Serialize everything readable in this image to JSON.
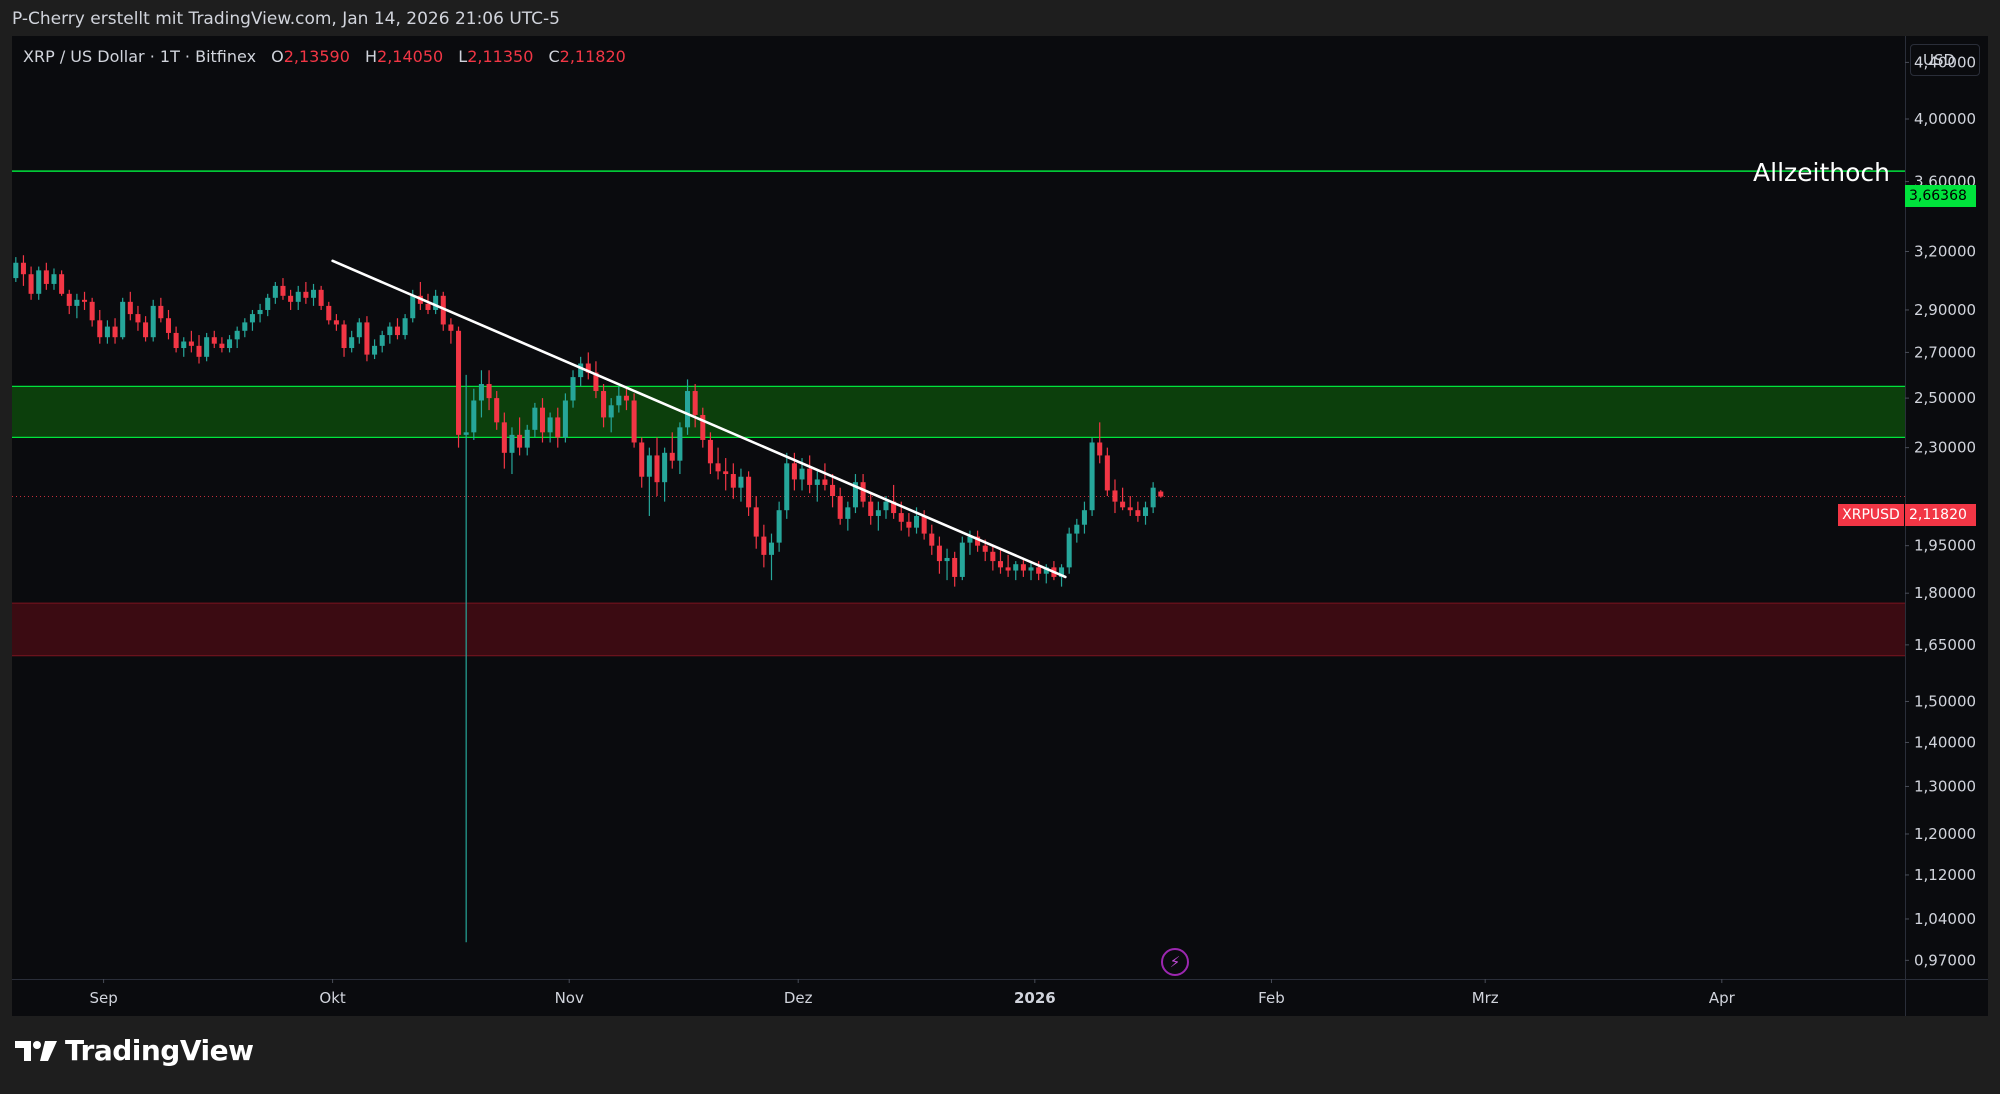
{
  "header": {
    "text": "P-Cherry erstellt mit TradingView.com, Jan 14, 2026 21:06 UTC-5"
  },
  "symbol": {
    "name": "XRP / US Dollar · 1T · Bitfinex",
    "o_label": "O",
    "o": "2,13590",
    "h_label": "H",
    "h": "2,14050",
    "l_label": "L",
    "l": "2,11350",
    "c_label": "C",
    "c": "2,11820"
  },
  "currency": "USD",
  "annotation": "Allzeithoch",
  "price_tags": {
    "ath": "3,66368",
    "ticker": "XRPUSD",
    "last": "2,11820"
  },
  "brand": {
    "name": "TradingView",
    "icon": "tradingview-logo-icon"
  },
  "toolbar": {
    "lightning_icon": "lightning-icon"
  },
  "colors": {
    "background": "#0a0b0e",
    "frame": "#1e1e1e",
    "up": "#26a69a",
    "down": "#f23645",
    "resistance_zone": "#0c3f0c",
    "support_zone": "#3b0b12",
    "ath_line": "#00e33c",
    "trendline": "#ffffff",
    "text": "#d1d4dc"
  },
  "chart_data": {
    "type": "candlestick",
    "symbol": "XRPUSD",
    "timeframe": "1T",
    "exchange": "Bitfinex",
    "y_scale": "log",
    "ylim": [
      0.94,
      4.6
    ],
    "y_ticks": [
      {
        "value": 4.4,
        "label": "4,40000"
      },
      {
        "value": 4.0,
        "label": "4,00000"
      },
      {
        "value": 3.6,
        "label": "3,60000"
      },
      {
        "value": 3.2,
        "label": "3,20000"
      },
      {
        "value": 2.9,
        "label": "2,90000"
      },
      {
        "value": 2.7,
        "label": "2,70000"
      },
      {
        "value": 2.5,
        "label": "2,50000"
      },
      {
        "value": 2.3,
        "label": "2,30000"
      },
      {
        "value": 1.95,
        "label": "1,95000"
      },
      {
        "value": 1.8,
        "label": "1,80000"
      },
      {
        "value": 1.65,
        "label": "1,65000"
      },
      {
        "value": 1.5,
        "label": "1,50000"
      },
      {
        "value": 1.4,
        "label": "1,40000"
      },
      {
        "value": 1.3,
        "label": "1,30000"
      },
      {
        "value": 1.2,
        "label": "1,20000"
      },
      {
        "value": 1.12,
        "label": "1,12000"
      },
      {
        "value": 1.04,
        "label": "1,04000"
      },
      {
        "value": 0.97,
        "label": "0,97000"
      }
    ],
    "x_start": "2025-08-20",
    "x_end": "2026-04-25",
    "x_ticks": [
      {
        "date": "2025-09-01",
        "label": "Sep"
      },
      {
        "date": "2025-10-01",
        "label": "Okt"
      },
      {
        "date": "2025-11-01",
        "label": "Nov"
      },
      {
        "date": "2025-12-01",
        "label": "Dez"
      },
      {
        "date": "2026-01-01",
        "label": "2026",
        "bold": true
      },
      {
        "date": "2026-02-01",
        "label": "Feb"
      },
      {
        "date": "2026-03-01",
        "label": "Mrz"
      },
      {
        "date": "2026-04-01",
        "label": "Apr"
      }
    ],
    "candles_start": "2025-08-20",
    "candles_ohlc": [
      [
        3.06,
        3.17,
        3.04,
        3.14
      ],
      [
        3.14,
        3.18,
        3.02,
        3.08
      ],
      [
        3.08,
        3.12,
        2.95,
        2.98
      ],
      [
        2.98,
        3.12,
        2.95,
        3.1
      ],
      [
        3.1,
        3.14,
        3.0,
        3.03
      ],
      [
        3.03,
        3.11,
        3.0,
        3.08
      ],
      [
        3.08,
        3.1,
        2.97,
        2.98
      ],
      [
        2.98,
        3.0,
        2.88,
        2.92
      ],
      [
        2.92,
        2.98,
        2.86,
        2.95
      ],
      [
        2.95,
        2.99,
        2.9,
        2.94
      ],
      [
        2.94,
        2.96,
        2.82,
        2.85
      ],
      [
        2.85,
        2.9,
        2.74,
        2.77
      ],
      [
        2.77,
        2.85,
        2.74,
        2.82
      ],
      [
        2.82,
        2.86,
        2.74,
        2.77
      ],
      [
        2.77,
        2.96,
        2.76,
        2.94
      ],
      [
        2.94,
        2.99,
        2.85,
        2.88
      ],
      [
        2.88,
        2.92,
        2.8,
        2.84
      ],
      [
        2.84,
        2.87,
        2.75,
        2.77
      ],
      [
        2.77,
        2.95,
        2.75,
        2.92
      ],
      [
        2.92,
        2.96,
        2.84,
        2.86
      ],
      [
        2.86,
        2.9,
        2.76,
        2.79
      ],
      [
        2.79,
        2.82,
        2.7,
        2.72
      ],
      [
        2.72,
        2.77,
        2.68,
        2.75
      ],
      [
        2.75,
        2.8,
        2.7,
        2.73
      ],
      [
        2.73,
        2.78,
        2.65,
        2.68
      ],
      [
        2.68,
        2.79,
        2.66,
        2.77
      ],
      [
        2.77,
        2.8,
        2.72,
        2.74
      ],
      [
        2.74,
        2.77,
        2.7,
        2.72
      ],
      [
        2.72,
        2.78,
        2.7,
        2.76
      ],
      [
        2.76,
        2.82,
        2.72,
        2.8
      ],
      [
        2.8,
        2.86,
        2.77,
        2.84
      ],
      [
        2.84,
        2.9,
        2.8,
        2.88
      ],
      [
        2.88,
        2.93,
        2.84,
        2.9
      ],
      [
        2.9,
        2.98,
        2.87,
        2.96
      ],
      [
        2.96,
        3.04,
        2.93,
        3.02
      ],
      [
        3.02,
        3.06,
        2.95,
        2.97
      ],
      [
        2.97,
        3.0,
        2.9,
        2.94
      ],
      [
        2.94,
        3.02,
        2.9,
        2.99
      ],
      [
        2.99,
        3.04,
        2.93,
        2.96
      ],
      [
        2.96,
        3.03,
        2.92,
        3.0
      ],
      [
        3.0,
        3.02,
        2.9,
        2.92
      ],
      [
        2.92,
        2.94,
        2.83,
        2.85
      ],
      [
        2.85,
        2.88,
        2.8,
        2.83
      ],
      [
        2.83,
        2.85,
        2.68,
        2.72
      ],
      [
        2.72,
        2.8,
        2.7,
        2.77
      ],
      [
        2.77,
        2.86,
        2.74,
        2.84
      ],
      [
        2.84,
        2.87,
        2.66,
        2.69
      ],
      [
        2.69,
        2.76,
        2.67,
        2.73
      ],
      [
        2.73,
        2.8,
        2.7,
        2.78
      ],
      [
        2.78,
        2.84,
        2.74,
        2.82
      ],
      [
        2.82,
        2.86,
        2.76,
        2.78
      ],
      [
        2.78,
        2.88,
        2.76,
        2.86
      ],
      [
        2.86,
        3.0,
        2.84,
        2.97
      ],
      [
        2.97,
        3.04,
        2.9,
        2.93
      ],
      [
        2.93,
        2.98,
        2.88,
        2.9
      ],
      [
        2.9,
        3.0,
        2.88,
        2.97
      ],
      [
        2.97,
        2.99,
        2.8,
        2.83
      ],
      [
        2.83,
        2.86,
        2.74,
        2.8
      ],
      [
        2.8,
        2.82,
        2.3,
        2.35
      ],
      [
        2.35,
        2.6,
        1.0,
        2.36
      ],
      [
        2.36,
        2.54,
        2.33,
        2.49
      ],
      [
        2.49,
        2.62,
        2.42,
        2.56
      ],
      [
        2.56,
        2.62,
        2.45,
        2.5
      ],
      [
        2.5,
        2.53,
        2.37,
        2.4
      ],
      [
        2.4,
        2.44,
        2.22,
        2.28
      ],
      [
        2.28,
        2.38,
        2.2,
        2.35
      ],
      [
        2.35,
        2.42,
        2.27,
        2.3
      ],
      [
        2.3,
        2.39,
        2.27,
        2.37
      ],
      [
        2.37,
        2.48,
        2.34,
        2.46
      ],
      [
        2.46,
        2.5,
        2.32,
        2.36
      ],
      [
        2.36,
        2.44,
        2.32,
        2.42
      ],
      [
        2.42,
        2.46,
        2.3,
        2.34
      ],
      [
        2.34,
        2.52,
        2.32,
        2.49
      ],
      [
        2.49,
        2.62,
        2.46,
        2.59
      ],
      [
        2.59,
        2.68,
        2.55,
        2.65
      ],
      [
        2.65,
        2.7,
        2.58,
        2.61
      ],
      [
        2.61,
        2.66,
        2.5,
        2.53
      ],
      [
        2.53,
        2.56,
        2.38,
        2.42
      ],
      [
        2.42,
        2.5,
        2.36,
        2.47
      ],
      [
        2.47,
        2.55,
        2.44,
        2.51
      ],
      [
        2.51,
        2.55,
        2.45,
        2.49
      ],
      [
        2.49,
        2.52,
        2.3,
        2.32
      ],
      [
        2.32,
        2.34,
        2.15,
        2.19
      ],
      [
        2.19,
        2.3,
        2.05,
        2.27
      ],
      [
        2.27,
        2.34,
        2.12,
        2.17
      ],
      [
        2.17,
        2.3,
        2.1,
        2.28
      ],
      [
        2.28,
        2.36,
        2.22,
        2.25
      ],
      [
        2.25,
        2.4,
        2.2,
        2.38
      ],
      [
        2.38,
        2.58,
        2.35,
        2.53
      ],
      [
        2.53,
        2.56,
        2.38,
        2.43
      ],
      [
        2.43,
        2.46,
        2.3,
        2.33
      ],
      [
        2.33,
        2.36,
        2.2,
        2.24
      ],
      [
        2.24,
        2.3,
        2.18,
        2.21
      ],
      [
        2.21,
        2.26,
        2.14,
        2.2
      ],
      [
        2.2,
        2.24,
        2.11,
        2.15
      ],
      [
        2.15,
        2.22,
        2.1,
        2.19
      ],
      [
        2.19,
        2.21,
        2.05,
        2.08
      ],
      [
        2.08,
        2.12,
        1.94,
        1.98
      ],
      [
        1.98,
        2.02,
        1.88,
        1.92
      ],
      [
        1.92,
        1.99,
        1.84,
        1.96
      ],
      [
        1.96,
        2.1,
        1.93,
        2.07
      ],
      [
        2.07,
        2.28,
        2.04,
        2.24
      ],
      [
        2.24,
        2.28,
        2.14,
        2.18
      ],
      [
        2.18,
        2.26,
        2.14,
        2.22
      ],
      [
        2.22,
        2.27,
        2.13,
        2.16
      ],
      [
        2.16,
        2.21,
        2.1,
        2.18
      ],
      [
        2.18,
        2.24,
        2.14,
        2.16
      ],
      [
        2.16,
        2.2,
        2.08,
        2.12
      ],
      [
        2.12,
        2.15,
        2.02,
        2.04
      ],
      [
        2.04,
        2.1,
        2.0,
        2.08
      ],
      [
        2.08,
        2.2,
        2.06,
        2.17
      ],
      [
        2.17,
        2.2,
        2.08,
        2.1
      ],
      [
        2.1,
        2.13,
        2.02,
        2.05
      ],
      [
        2.05,
        2.1,
        2.0,
        2.07
      ],
      [
        2.07,
        2.12,
        2.04,
        2.1
      ],
      [
        2.1,
        2.16,
        2.04,
        2.06
      ],
      [
        2.06,
        2.1,
        2.0,
        2.03
      ],
      [
        2.03,
        2.06,
        1.98,
        2.01
      ],
      [
        2.01,
        2.08,
        1.99,
        2.05
      ],
      [
        2.05,
        2.07,
        1.97,
        1.99
      ],
      [
        1.99,
        2.02,
        1.92,
        1.95
      ],
      [
        1.95,
        1.98,
        1.86,
        1.9
      ],
      [
        1.9,
        1.94,
        1.84,
        1.91
      ],
      [
        1.91,
        1.93,
        1.82,
        1.85
      ],
      [
        1.85,
        1.98,
        1.84,
        1.96
      ],
      [
        1.96,
        2.0,
        1.92,
        1.98
      ],
      [
        1.98,
        2.0,
        1.93,
        1.95
      ],
      [
        1.95,
        1.97,
        1.9,
        1.93
      ],
      [
        1.93,
        1.95,
        1.87,
        1.9
      ],
      [
        1.9,
        1.94,
        1.86,
        1.88
      ],
      [
        1.88,
        1.92,
        1.85,
        1.87
      ],
      [
        1.87,
        1.9,
        1.84,
        1.89
      ],
      [
        1.89,
        1.91,
        1.85,
        1.87
      ],
      [
        1.87,
        1.9,
        1.84,
        1.88
      ],
      [
        1.88,
        1.9,
        1.84,
        1.86
      ],
      [
        1.86,
        1.89,
        1.83,
        1.88
      ],
      [
        1.88,
        1.9,
        1.84,
        1.85
      ],
      [
        1.85,
        1.89,
        1.82,
        1.88
      ],
      [
        1.88,
        2.01,
        1.86,
        1.99
      ],
      [
        1.99,
        2.04,
        1.96,
        2.02
      ],
      [
        2.02,
        2.1,
        1.99,
        2.07
      ],
      [
        2.07,
        2.34,
        2.05,
        2.32
      ],
      [
        2.32,
        2.4,
        2.24,
        2.27
      ],
      [
        2.27,
        2.3,
        2.12,
        2.14
      ],
      [
        2.14,
        2.18,
        2.06,
        2.1
      ],
      [
        2.1,
        2.15,
        2.07,
        2.08
      ],
      [
        2.08,
        2.12,
        2.05,
        2.07
      ],
      [
        2.07,
        2.1,
        2.03,
        2.05
      ],
      [
        2.05,
        2.1,
        2.02,
        2.08
      ],
      [
        2.08,
        2.17,
        2.06,
        2.15
      ],
      [
        2.136,
        2.141,
        2.114,
        2.118
      ]
    ],
    "resistance_zone": [
      2.34,
      2.55
    ],
    "support_zone": [
      1.62,
      1.77
    ],
    "ath_line": 3.66368,
    "last_price": 2.1182,
    "trendline": {
      "start": [
        "2025-10-01",
        3.15
      ],
      "end": [
        "2026-01-05",
        1.85
      ]
    }
  }
}
